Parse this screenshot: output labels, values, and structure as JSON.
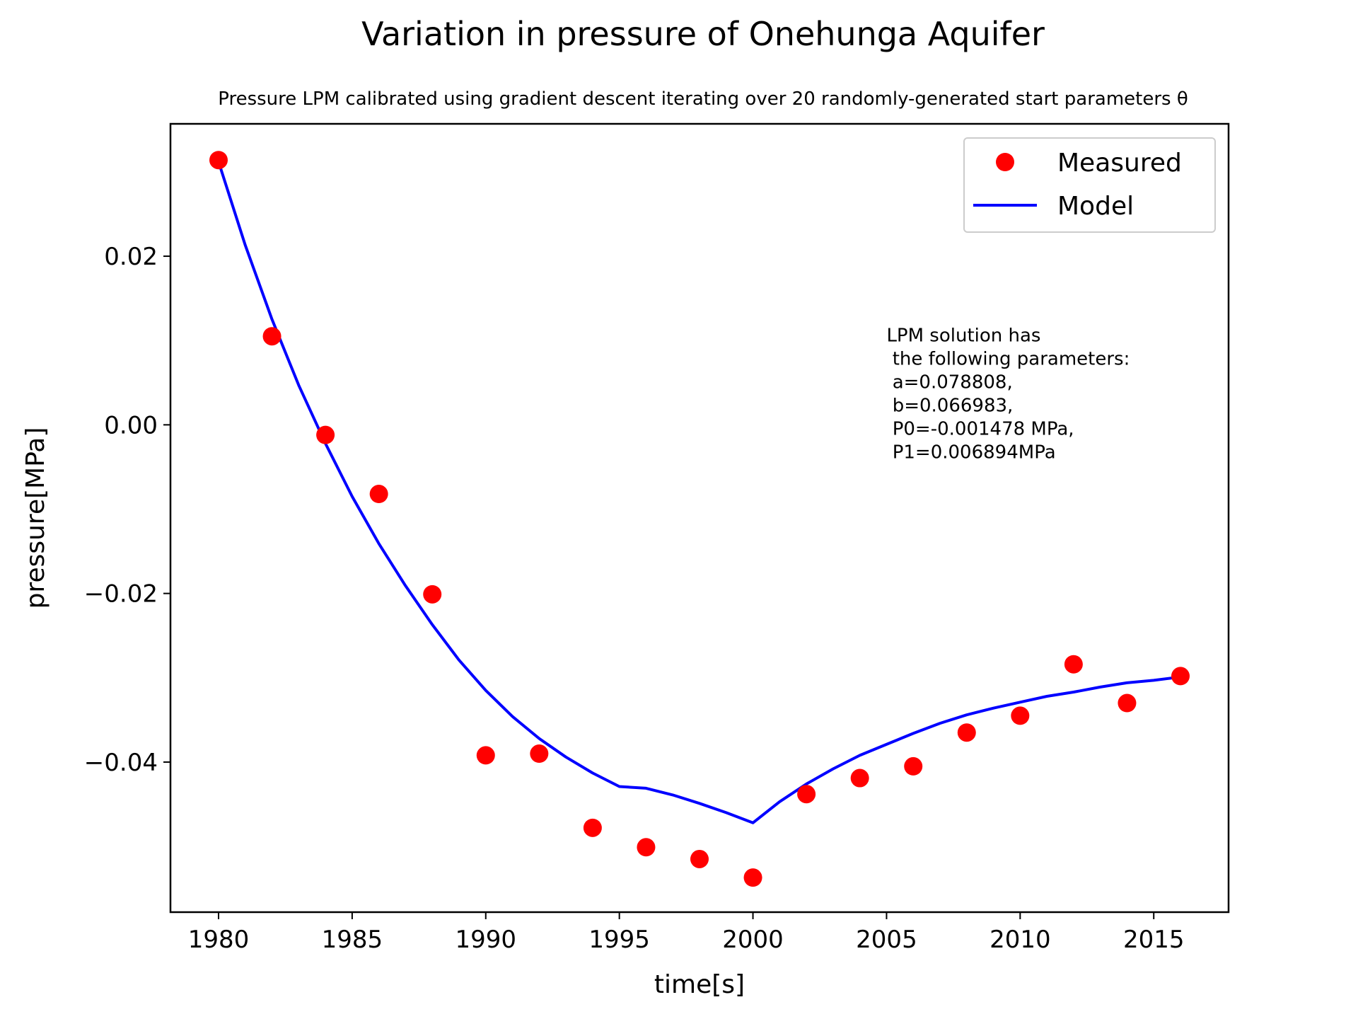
{
  "chart_data": {
    "type": "line",
    "title": "Variation in pressure of Onehunga Aquifer",
    "subtitle": "Pressure LPM calibrated using gradient descent iterating over 20 randomly-generated start parameters θ",
    "xlabel": "time[s]",
    "ylabel": "pressure[MPa]",
    "xlim": [
      1978.2,
      2017.8
    ],
    "ylim": [
      -0.0578,
      0.0357
    ],
    "xticks": [
      1980,
      1985,
      1990,
      1995,
      2000,
      2005,
      2010,
      2015
    ],
    "xtick_labels": [
      "1980",
      "1985",
      "1990",
      "1995",
      "2000",
      "2005",
      "2010",
      "2015"
    ],
    "yticks": [
      -0.04,
      -0.02,
      0.0,
      0.02
    ],
    "ytick_labels": [
      "−0.04",
      "−0.02",
      "0.00",
      "0.02"
    ],
    "grid": false,
    "legend_position": "top-right",
    "series": [
      {
        "name": "Measured",
        "style": "markers",
        "color": "#ff0000",
        "x": [
          1980,
          1982,
          1984,
          1986,
          1988,
          1990,
          1992,
          1994,
          1996,
          1998,
          2000,
          2002,
          2004,
          2006,
          2008,
          2010,
          2012,
          2014,
          2016
        ],
        "y": [
          0.0314,
          0.0105,
          -0.0012,
          -0.0082,
          -0.0201,
          -0.0392,
          -0.039,
          -0.0478,
          -0.0501,
          -0.0515,
          -0.0537,
          -0.0438,
          -0.0419,
          -0.0405,
          -0.0365,
          -0.0345,
          -0.0284,
          -0.033,
          -0.0298
        ]
      },
      {
        "name": "Model",
        "style": "line",
        "color": "#0000ff",
        "x": [
          1980,
          1981,
          1982,
          1983,
          1984,
          1985,
          1986,
          1987,
          1988,
          1989,
          1990,
          1991,
          1992,
          1993,
          1994,
          1995,
          1996,
          1997,
          1998,
          1999,
          2000,
          2001,
          2002,
          2003,
          2004,
          2005,
          2006,
          2007,
          2008,
          2009,
          2010,
          2011,
          2012,
          2013,
          2014,
          2015,
          2016
        ],
        "y": [
          0.0312,
          0.0213,
          0.0125,
          0.0047,
          -0.0022,
          -0.0085,
          -0.0141,
          -0.0191,
          -0.0237,
          -0.0279,
          -0.0315,
          -0.0346,
          -0.0372,
          -0.0394,
          -0.0413,
          -0.0429,
          -0.0431,
          -0.0439,
          -0.0449,
          -0.046,
          -0.0472,
          -0.0447,
          -0.0426,
          -0.0408,
          -0.0392,
          -0.0379,
          -0.0366,
          -0.0354,
          -0.0344,
          -0.0336,
          -0.0329,
          -0.0322,
          -0.0317,
          -0.0311,
          -0.0306,
          -0.0303,
          -0.0299
        ]
      }
    ],
    "annotation": {
      "lines": [
        "LPM solution has",
        " the following parameters:",
        " a=0.078808,",
        " b=0.066983,",
        " P0=-0.001478 MPa,",
        " P1=0.006894MPa"
      ],
      "x": 2005.0,
      "y": 0.0099
    }
  }
}
